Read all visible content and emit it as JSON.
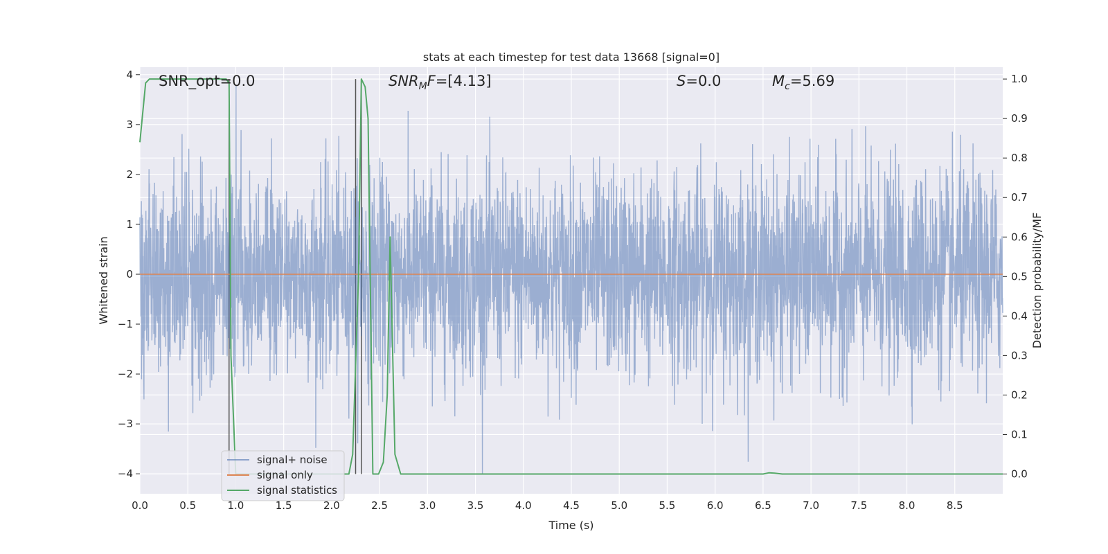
{
  "chart_data": {
    "type": "line",
    "title": "stats at each timestep for test data 13668 [signal=0]",
    "xlabel": "Time (s)",
    "ylabel": "Whitened strain",
    "y2label": "Detection probability/MF",
    "xlim": [
      0.0,
      9.0
    ],
    "ylim": [
      -4.4,
      4.15
    ],
    "y2lim": [
      -0.05,
      1.03
    ],
    "grid": true,
    "x_ticks": [
      "0.0",
      "0.5",
      "1.0",
      "1.5",
      "2.0",
      "2.5",
      "3.0",
      "3.5",
      "4.0",
      "4.5",
      "5.0",
      "5.5",
      "6.0",
      "6.5",
      "7.0",
      "7.5",
      "8.0",
      "8.5"
    ],
    "y_ticks": [
      "4",
      "3",
      "2",
      "1",
      "0",
      "−1",
      "−2",
      "−3",
      "−4"
    ],
    "y2_ticks": [
      "1.0",
      "0.9",
      "0.8",
      "0.7",
      "0.6",
      "0.5",
      "0.4",
      "0.3",
      "0.2",
      "0.1",
      "0.0"
    ],
    "annotations": {
      "snr_opt": "SNR_opt=0.0",
      "snr_mf_base": "SNR",
      "snr_mf_sub": "M",
      "snr_mf_f": "F",
      "snr_mf_value": "=[4.13]",
      "s_symbol": "S",
      "s_value": "=0.0",
      "mc_symbol": "M",
      "mc_sub": "c",
      "mc_value": "=5.69"
    },
    "vertical_markers_x": [
      0.93,
      2.25,
      2.31
    ],
    "legend": {
      "placement": "lower-left",
      "entries": [
        "signal+ noise",
        "signal only",
        "signal statistics"
      ]
    },
    "series": [
      {
        "name": "signal+ noise",
        "color": "#4c72b0",
        "kind": "noise",
        "sample_rate_hz": 400,
        "std": 1.0,
        "range_approx": [
          -4.0,
          3.9
        ]
      },
      {
        "name": "signal only",
        "color": "#dd8452",
        "x": [
          0.0,
          9.0
        ],
        "y": [
          0.0,
          0.0
        ]
      },
      {
        "name": "signal statistics",
        "color": "#55a868",
        "axis": "right",
        "x": [
          0.0,
          0.06,
          0.1,
          0.2,
          0.5,
          0.8,
          0.9,
          0.93,
          0.95,
          1.0,
          1.05,
          2.18,
          2.22,
          2.28,
          2.31,
          2.35,
          2.38,
          2.43,
          2.49,
          2.54,
          2.58,
          2.61,
          2.66,
          2.72,
          2.8,
          3.0,
          4.0,
          5.0,
          6.0,
          6.5,
          6.56,
          6.62,
          6.7,
          7.0,
          8.0,
          9.0
        ],
        "y": [
          0.84,
          0.99,
          1.0,
          1.0,
          1.0,
          1.0,
          1.0,
          0.99,
          0.3,
          0.0,
          0.0,
          0.0,
          0.05,
          0.5,
          1.0,
          0.98,
          0.9,
          0.0,
          0.0,
          0.03,
          0.2,
          0.6,
          0.05,
          0.0,
          0.0,
          0.0,
          0.0,
          0.0,
          0.0,
          0.0,
          0.003,
          0.002,
          0.0,
          0.0,
          0.0,
          0.0
        ]
      }
    ]
  }
}
